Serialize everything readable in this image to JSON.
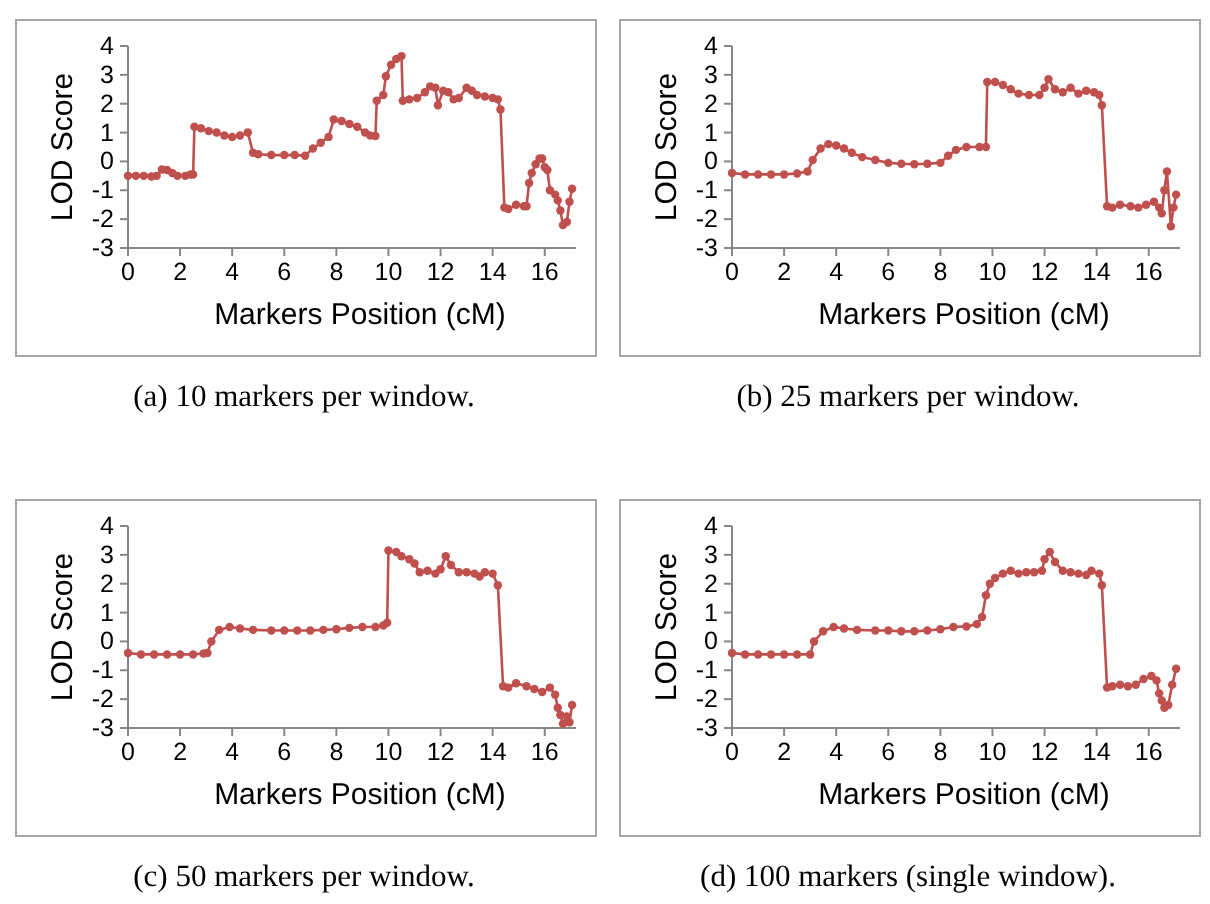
{
  "chart_data": [
    {
      "type": "line",
      "xlabel": "Markers Position (cM)",
      "ylabel": "LOD Score",
      "annotations": [
        "(a) 10 markers per window."
      ],
      "color": "#c0504d",
      "marker": "circle",
      "xlim": [
        0,
        17.2
      ],
      "ylim": [
        -3,
        4
      ],
      "xticks": [
        0,
        2,
        4,
        6,
        8,
        10,
        12,
        14,
        16
      ],
      "yticks": [
        -3,
        -2,
        -1,
        0,
        1,
        2,
        3,
        4
      ],
      "x": [
        0,
        0.3,
        0.6,
        0.9,
        1.1,
        1.3,
        1.5,
        1.7,
        1.9,
        2.2,
        2.4,
        2.5,
        2.55,
        2.8,
        3.1,
        3.4,
        3.7,
        4.0,
        4.3,
        4.6,
        4.8,
        5.0,
        5.5,
        6.0,
        6.4,
        6.8,
        7.1,
        7.4,
        7.7,
        7.9,
        8.2,
        8.5,
        8.8,
        9.1,
        9.3,
        9.5,
        9.55,
        9.8,
        9.9,
        10.1,
        10.3,
        10.5,
        10.55,
        10.8,
        11.1,
        11.4,
        11.6,
        11.8,
        11.9,
        12.1,
        12.3,
        12.5,
        12.7,
        13.0,
        13.2,
        13.4,
        13.7,
        14.0,
        14.2,
        14.3,
        14.45,
        14.6,
        14.9,
        15.2,
        15.3,
        15.4,
        15.5,
        15.65,
        15.8,
        15.9,
        16.0,
        16.1,
        16.2,
        16.4,
        16.5,
        16.6,
        16.7,
        16.85,
        16.95,
        17.05
      ],
      "values": [
        -0.5,
        -0.5,
        -0.5,
        -0.52,
        -0.5,
        -0.28,
        -0.3,
        -0.4,
        -0.5,
        -0.5,
        -0.45,
        -0.45,
        1.2,
        1.15,
        1.05,
        1.0,
        0.9,
        0.85,
        0.9,
        1.0,
        0.3,
        0.25,
        0.22,
        0.22,
        0.22,
        0.2,
        0.45,
        0.65,
        0.85,
        1.45,
        1.4,
        1.3,
        1.2,
        1.0,
        0.9,
        0.88,
        2.1,
        2.3,
        2.95,
        3.35,
        3.55,
        3.65,
        2.1,
        2.15,
        2.2,
        2.4,
        2.6,
        2.55,
        1.95,
        2.45,
        2.4,
        2.15,
        2.2,
        2.55,
        2.45,
        2.3,
        2.25,
        2.2,
        2.15,
        1.8,
        -1.6,
        -1.65,
        -1.5,
        -1.55,
        -1.55,
        -0.75,
        -0.4,
        -0.1,
        0.1,
        0.1,
        -0.2,
        -0.3,
        -1.0,
        -1.15,
        -1.35,
        -1.7,
        -2.2,
        -2.1,
        -1.4,
        -0.95
      ]
    },
    {
      "type": "line",
      "xlabel": "Markers Position (cM)",
      "ylabel": "LOD Score",
      "annotations": [
        "(b) 25 markers per window."
      ],
      "color": "#c0504d",
      "marker": "circle",
      "xlim": [
        0,
        17.2
      ],
      "ylim": [
        -3,
        4
      ],
      "xticks": [
        0,
        2,
        4,
        6,
        8,
        10,
        12,
        14,
        16
      ],
      "yticks": [
        -3,
        -2,
        -1,
        0,
        1,
        2,
        3,
        4
      ],
      "x": [
        0,
        0.5,
        1,
        1.5,
        2,
        2.5,
        2.9,
        3.1,
        3.4,
        3.7,
        4.0,
        4.3,
        4.6,
        5.0,
        5.5,
        6.0,
        6.5,
        7.0,
        7.5,
        8.0,
        8.3,
        8.6,
        9.0,
        9.5,
        9.75,
        9.8,
        10.1,
        10.4,
        10.7,
        11.0,
        11.4,
        11.8,
        12.0,
        12.15,
        12.4,
        12.7,
        13.0,
        13.3,
        13.6,
        13.9,
        14.1,
        14.2,
        14.4,
        14.6,
        14.9,
        15.3,
        15.6,
        15.9,
        16.2,
        16.4,
        16.5,
        16.6,
        16.7,
        16.85,
        16.95,
        17.05
      ],
      "values": [
        -0.4,
        -0.45,
        -0.45,
        -0.45,
        -0.45,
        -0.42,
        -0.35,
        0.05,
        0.45,
        0.6,
        0.55,
        0.45,
        0.3,
        0.15,
        0.05,
        -0.05,
        -0.08,
        -0.1,
        -0.08,
        -0.05,
        0.2,
        0.4,
        0.5,
        0.5,
        0.5,
        2.75,
        2.75,
        2.65,
        2.5,
        2.35,
        2.3,
        2.3,
        2.55,
        2.85,
        2.5,
        2.4,
        2.55,
        2.35,
        2.45,
        2.4,
        2.3,
        1.95,
        -1.55,
        -1.6,
        -1.5,
        -1.55,
        -1.6,
        -1.5,
        -1.4,
        -1.6,
        -1.8,
        -1.0,
        -0.35,
        -2.25,
        -1.6,
        -1.15
      ]
    },
    {
      "type": "line",
      "xlabel": "Markers Position (cM)",
      "ylabel": "LOD Score",
      "annotations": [
        "(c) 50 markers per window."
      ],
      "color": "#c0504d",
      "marker": "circle",
      "xlim": [
        0,
        17.2
      ],
      "ylim": [
        -3,
        4
      ],
      "xticks": [
        0,
        2,
        4,
        6,
        8,
        10,
        12,
        14,
        16
      ],
      "yticks": [
        -3,
        -2,
        -1,
        0,
        1,
        2,
        3,
        4
      ],
      "x": [
        0,
        0.5,
        1,
        1.5,
        2,
        2.5,
        2.9,
        3.05,
        3.2,
        3.5,
        3.9,
        4.3,
        4.8,
        5.5,
        6,
        6.5,
        7,
        7.5,
        8,
        8.5,
        9,
        9.5,
        9.8,
        9.95,
        10.0,
        10.3,
        10.5,
        10.8,
        11.0,
        11.2,
        11.5,
        11.8,
        12.0,
        12.2,
        12.4,
        12.7,
        13.0,
        13.3,
        13.5,
        13.7,
        14.0,
        14.2,
        14.4,
        14.6,
        14.9,
        15.3,
        15.6,
        15.9,
        16.2,
        16.4,
        16.5,
        16.6,
        16.7,
        16.85,
        16.95,
        17.05
      ],
      "values": [
        -0.4,
        -0.45,
        -0.45,
        -0.45,
        -0.45,
        -0.45,
        -0.42,
        -0.4,
        0.0,
        0.4,
        0.5,
        0.45,
        0.4,
        0.38,
        0.38,
        0.38,
        0.38,
        0.4,
        0.42,
        0.47,
        0.5,
        0.5,
        0.55,
        0.65,
        3.15,
        3.1,
        2.95,
        2.85,
        2.7,
        2.4,
        2.45,
        2.35,
        2.5,
        2.95,
        2.65,
        2.4,
        2.4,
        2.35,
        2.25,
        2.4,
        2.35,
        1.95,
        -1.55,
        -1.6,
        -1.45,
        -1.55,
        -1.65,
        -1.75,
        -1.6,
        -1.85,
        -2.3,
        -2.55,
        -2.85,
        -2.6,
        -2.8,
        -2.2
      ]
    },
    {
      "type": "line",
      "xlabel": "Markers Position (cM)",
      "ylabel": "LOD Score",
      "annotations": [
        "(d) 100 markers (single window)."
      ],
      "color": "#c0504d",
      "marker": "circle",
      "xlim": [
        0,
        17.2
      ],
      "ylim": [
        -3,
        4
      ],
      "xticks": [
        0,
        2,
        4,
        6,
        8,
        10,
        12,
        14,
        16
      ],
      "yticks": [
        -3,
        -2,
        -1,
        0,
        1,
        2,
        3,
        4
      ],
      "x": [
        0,
        0.5,
        1,
        1.5,
        2,
        2.5,
        3,
        3.15,
        3.5,
        3.9,
        4.3,
        4.8,
        5.5,
        6,
        6.5,
        7,
        7.5,
        8,
        8.5,
        9,
        9.4,
        9.6,
        9.75,
        9.9,
        10.1,
        10.4,
        10.7,
        11.0,
        11.3,
        11.6,
        11.9,
        12.0,
        12.2,
        12.4,
        12.7,
        13.0,
        13.3,
        13.6,
        13.8,
        14.1,
        14.2,
        14.4,
        14.6,
        14.9,
        15.2,
        15.5,
        15.8,
        16.1,
        16.3,
        16.4,
        16.5,
        16.6,
        16.75,
        16.9,
        17.05
      ],
      "values": [
        -0.4,
        -0.45,
        -0.45,
        -0.45,
        -0.45,
        -0.45,
        -0.45,
        0.0,
        0.35,
        0.5,
        0.45,
        0.4,
        0.38,
        0.38,
        0.35,
        0.35,
        0.38,
        0.42,
        0.5,
        0.52,
        0.6,
        0.85,
        1.6,
        2.0,
        2.2,
        2.35,
        2.45,
        2.35,
        2.4,
        2.4,
        2.45,
        2.85,
        3.1,
        2.75,
        2.45,
        2.4,
        2.35,
        2.3,
        2.45,
        2.35,
        1.95,
        -1.6,
        -1.55,
        -1.5,
        -1.55,
        -1.5,
        -1.3,
        -1.2,
        -1.35,
        -1.8,
        -2.05,
        -2.3,
        -2.2,
        -1.5,
        -0.95
      ]
    }
  ]
}
